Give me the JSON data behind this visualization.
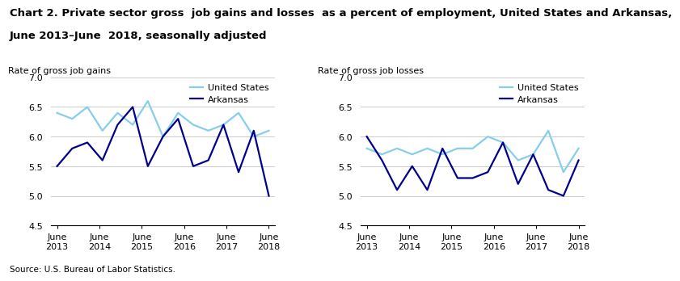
{
  "title_line1": "Chart 2. Private sector gross  job gains and losses  as a percent of employment, United States and Arkansas,",
  "title_line2": "June 2013–June  2018, seasonally adjusted",
  "title_fontsize": 9.5,
  "source": "Source: U.S. Bureau of Labor Statistics.",
  "x_labels": [
    "June\n2013",
    "June\n2014",
    "June\n2015",
    "June\n2016",
    "June\n2017",
    "June\n2018"
  ],
  "x_tick_pos": [
    0,
    2,
    4,
    6,
    8,
    10
  ],
  "gains_us": [
    6.4,
    6.3,
    6.5,
    6.1,
    6.4,
    6.2,
    6.6,
    6.0,
    6.4,
    6.2,
    6.1,
    6.2,
    6.4,
    6.0,
    6.1
  ],
  "gains_ark": [
    5.5,
    5.8,
    5.9,
    5.6,
    6.2,
    6.5,
    5.5,
    6.0,
    6.3,
    5.5,
    5.6,
    6.2,
    5.4,
    6.1,
    5.0
  ],
  "losses_us": [
    5.8,
    5.7,
    5.8,
    5.7,
    5.8,
    5.7,
    5.8,
    5.8,
    6.0,
    5.9,
    5.6,
    5.7,
    6.1,
    5.4,
    5.8
  ],
  "losses_ark": [
    6.0,
    5.6,
    5.1,
    5.5,
    5.1,
    5.8,
    5.3,
    5.3,
    5.4,
    5.9,
    5.2,
    5.7,
    5.1,
    5.0,
    5.6
  ],
  "ylabel_gains": "Rate of gross job gains",
  "ylabel_losses": "Rate of gross job losses",
  "ylim": [
    4.5,
    7.0
  ],
  "yticks": [
    4.5,
    5.0,
    5.5,
    6.0,
    6.5,
    7.0
  ],
  "color_us": "#87CEEB",
  "color_ark": "#00008B",
  "legend_us": "United States",
  "legend_ark": "Arkansas",
  "line_width": 1.6
}
